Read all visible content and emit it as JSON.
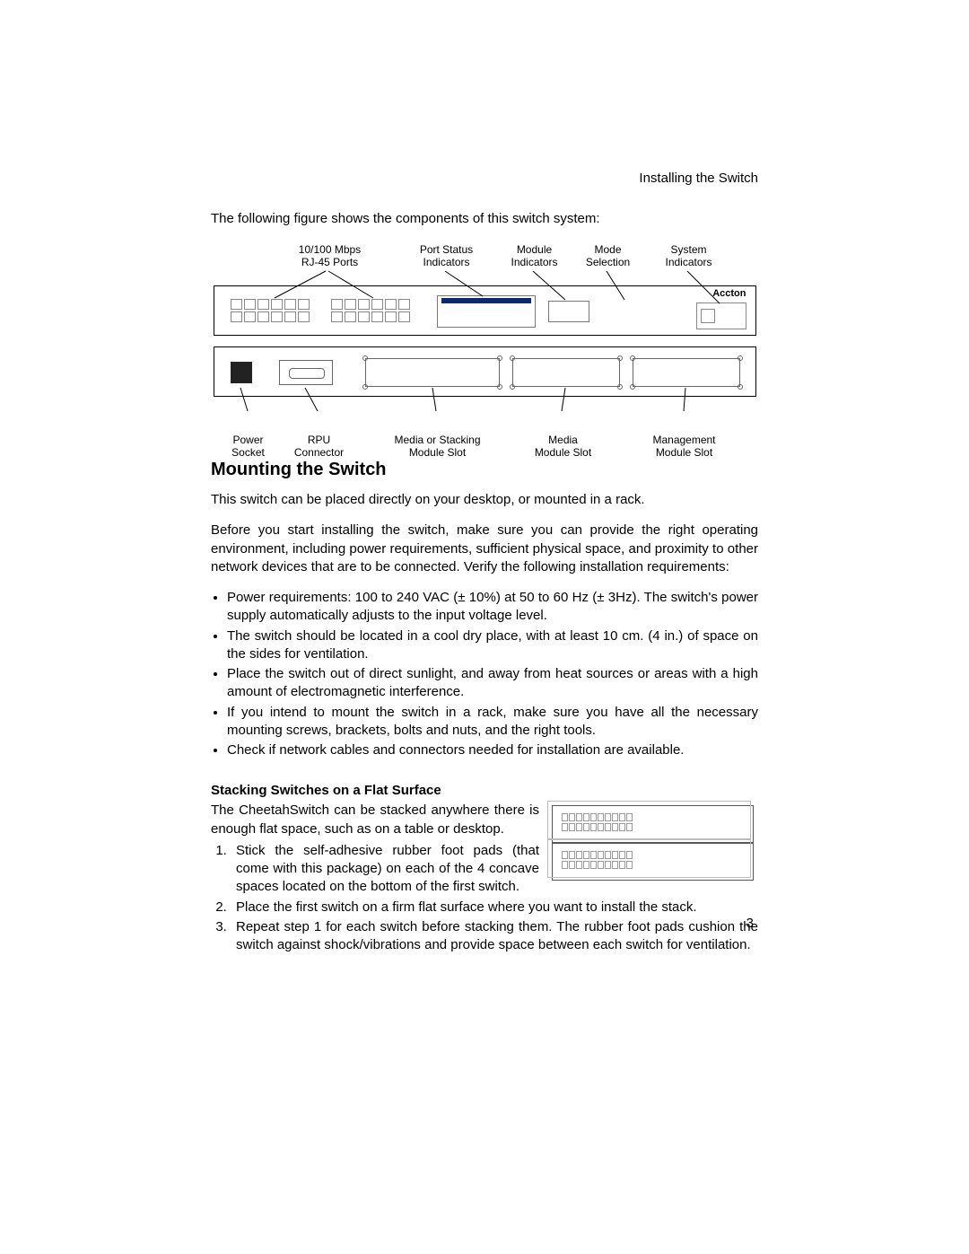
{
  "page": {
    "header_right": "Installing the Switch",
    "page_number": "3"
  },
  "intro": "The following figure shows the components of this switch system:",
  "diagram": {
    "front_labels": {
      "rj45": "10/100 Mbps\nRJ-45 Ports",
      "port": "Port Status\nIndicators",
      "mod": "Module\nIndicators",
      "mode": "Mode\nSelection",
      "sys": "System\nIndicators"
    },
    "brand": "Accton",
    "back_labels": {
      "power": "Power\nSocket",
      "rpu": "RPU\nConnector",
      "slotA": "Media or Stacking\nModule Slot",
      "slotB": "Media\nModule Slot",
      "slotC": "Management\nModule Slot"
    },
    "colors": {
      "box_border": "#000000",
      "inner_border": "#777777",
      "status_bar": "#0b2a6b"
    }
  },
  "mounting": {
    "heading": "Mounting the Switch",
    "p1": "This switch can be placed directly on your desktop, or mounted in a rack.",
    "p2": "Before you start installing the switch, make sure you can provide the right operating environment, including power requirements, sufficient physical space, and proximity to other network devices that are to be connected. Verify the following installation requirements:",
    "bullets": [
      "Power requirements: 100 to 240 VAC (± 10%) at 50 to 60 Hz (± 3Hz). The switch's power supply automatically adjusts to the input voltage level.",
      "The switch should be located in a cool dry place, with at least 10 cm. (4 in.) of space on the sides for ventilation.",
      "Place the switch out of direct sunlight, and away from heat sources or areas with a high amount of electromagnetic interference.",
      "If you intend to mount the switch in a rack, make sure you have all the necessary mounting screws, brackets, bolts and nuts, and the right tools.",
      "Check if network cables and connectors needed for installation are available."
    ]
  },
  "stacking": {
    "heading": "Stacking Switches on a Flat Surface",
    "intro": "The CheetahSwitch can be stacked anywhere there is enough flat space, such as on a table or desktop.",
    "steps": [
      "Stick the self-adhesive rubber foot pads (that come with this package) on each of the 4 concave spaces located on the bottom of the first switch.",
      "Place the first switch on a firm flat surface where you want to install the stack.",
      "Repeat step 1 for each switch before stacking them. The rubber foot pads cushion the switch against shock/vibrations and provide space between each switch for ventilation."
    ]
  }
}
